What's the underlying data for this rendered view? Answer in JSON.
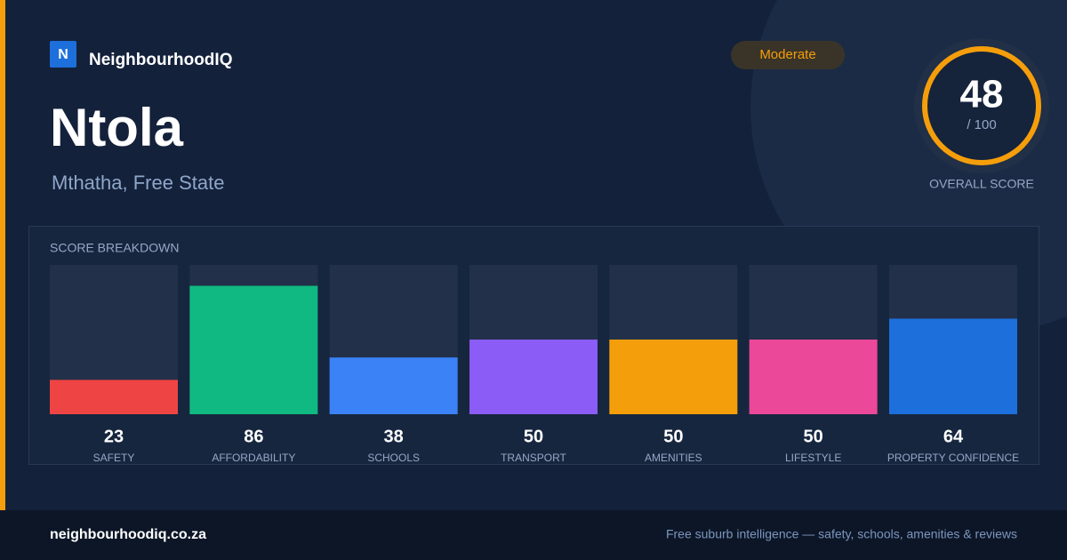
{
  "brand": {
    "logo": "N",
    "name": "NeighbourhoodIQ"
  },
  "header": {
    "title": "Ntola",
    "subtitle": "Mthatha, Free State",
    "badge": "Moderate"
  },
  "score": {
    "value": 48,
    "max": {
      "value": 100,
      "label": "/ 100"
    },
    "label": "OVERALL SCORE"
  },
  "breakdown": {
    "title": "SCORE BREAKDOWN",
    "items": [
      {
        "label": "SAFETY",
        "value": 23,
        "color": "#ef4444"
      },
      {
        "label": "AFFORDABILITY",
        "value": 86,
        "color": "#10b981"
      },
      {
        "label": "SCHOOLS",
        "value": 38,
        "color": "#3b82f6"
      },
      {
        "label": "TRANSPORT",
        "value": 50,
        "color": "#8b5cf6"
      },
      {
        "label": "AMENITIES",
        "value": 50,
        "color": "#f59e0b"
      },
      {
        "label": "LIFESTYLE",
        "value": 50,
        "color": "#ec4899"
      },
      {
        "label": "PROPERTY CONFIDENCE",
        "value": 64,
        "color": "#1d6fdb"
      }
    ]
  },
  "footer": {
    "site": "neighbourhoodiq.co.za",
    "tagline": "Free suburb intelligence — safety, schools, amenities & reviews"
  }
}
